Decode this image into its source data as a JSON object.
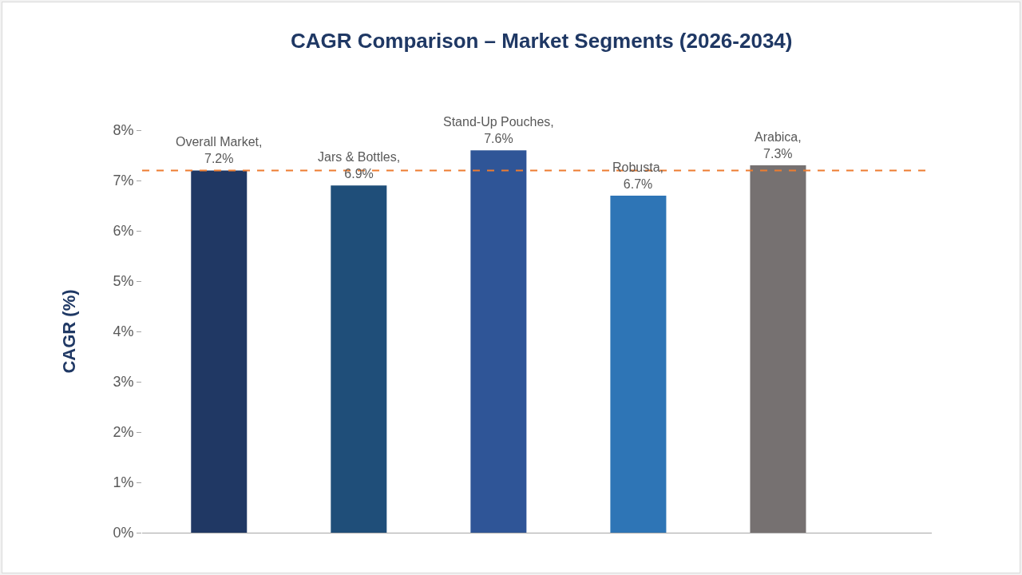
{
  "chart_data": {
    "type": "bar",
    "title": "CAGR Comparison – Market Segments (2026-2034)",
    "ylabel": "CAGR (%)",
    "categories": [
      null,
      null,
      null,
      null,
      null
    ],
    "values": [
      7.2,
      6.9,
      7.6,
      6.7,
      7.3
    ],
    "colors": [
      "#203864",
      "#1f4e79",
      "#2f5597",
      "#2e75b6",
      "#767171"
    ],
    "value_labels": [
      "Overall Market, 7.2%",
      "Jars & Bottles, 6.9%",
      "Stand-Up Pouches, 7.6%",
      "Robusta, 6.7%",
      "Arabica, 7.3%"
    ],
    "ylim": [
      0,
      8
    ],
    "yticks": [
      {
        "value": 0,
        "label": "0%"
      },
      {
        "value": 1,
        "label": "1%"
      },
      {
        "value": 2,
        "label": "2%"
      },
      {
        "value": 3,
        "label": "3%"
      },
      {
        "value": 4,
        "label": "4%"
      },
      {
        "value": 5,
        "label": "5%"
      },
      {
        "value": 6,
        "label": "6%"
      },
      {
        "value": 7,
        "label": "7%"
      },
      {
        "value": 8,
        "label": "8%"
      }
    ],
    "ref_lines": [
      {
        "axis": "y",
        "value": 7.2,
        "color": "#ed7d31",
        "line_style": "dashed"
      }
    ],
    "grid": false,
    "tick_labels": "y"
  }
}
